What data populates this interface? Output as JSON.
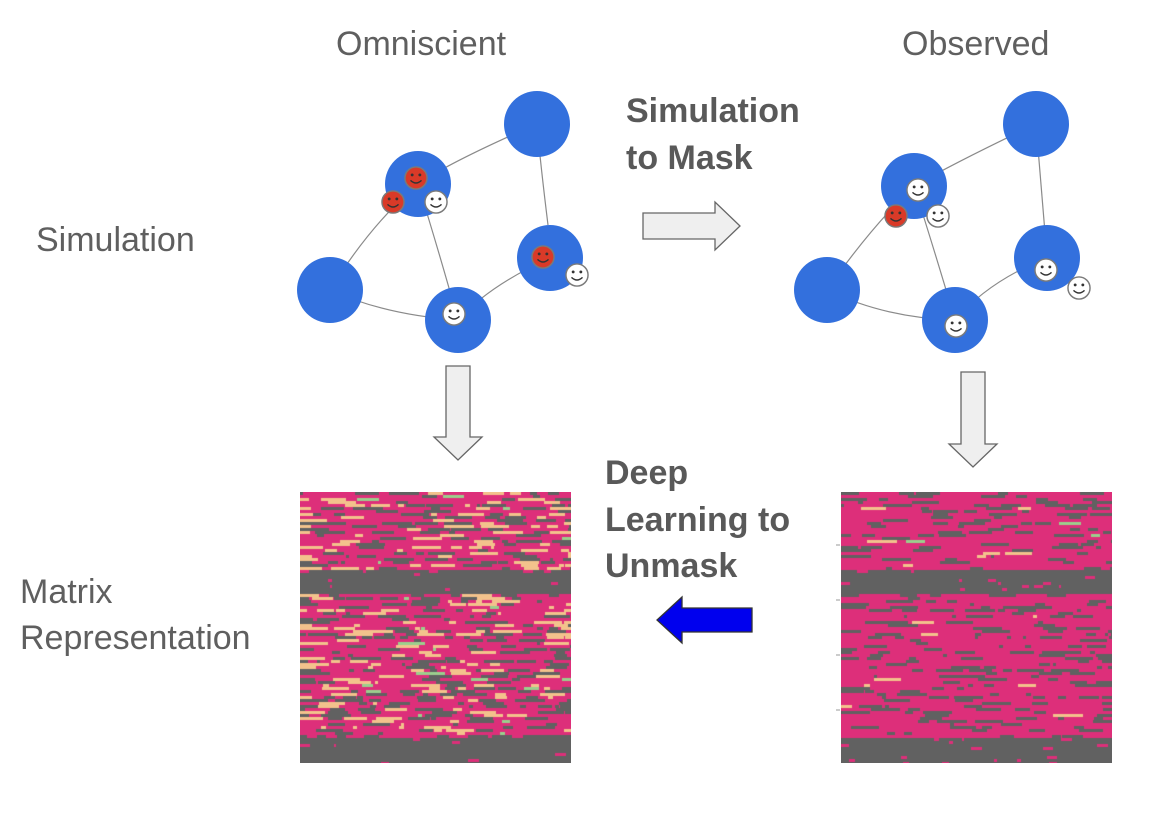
{
  "columns": {
    "left": "Omniscient",
    "right": "Observed"
  },
  "rows": {
    "top": "Simulation",
    "bottom": "Matrix\nRepresentation"
  },
  "steps": {
    "mask": "Simulation\nto Mask",
    "unmask": "Deep\nLearning to\nUnmask"
  },
  "colors": {
    "node": "#3370dd",
    "infected_face": "#d93a28",
    "healthy_face": "#ffffff",
    "matrix_magenta": "#dd2f7a",
    "matrix_gray": "#616161",
    "matrix_peach": "#f3c28c",
    "matrix_green": "#9bcf8d",
    "step_arrow": "#efefef",
    "unmask_arrow": "#0000ee"
  },
  "icons": {
    "face": "smiley-face-icon",
    "arrow_right": "right-arrow-icon",
    "arrow_down": "down-arrow-icon",
    "arrow_left": "left-arrow-icon"
  }
}
